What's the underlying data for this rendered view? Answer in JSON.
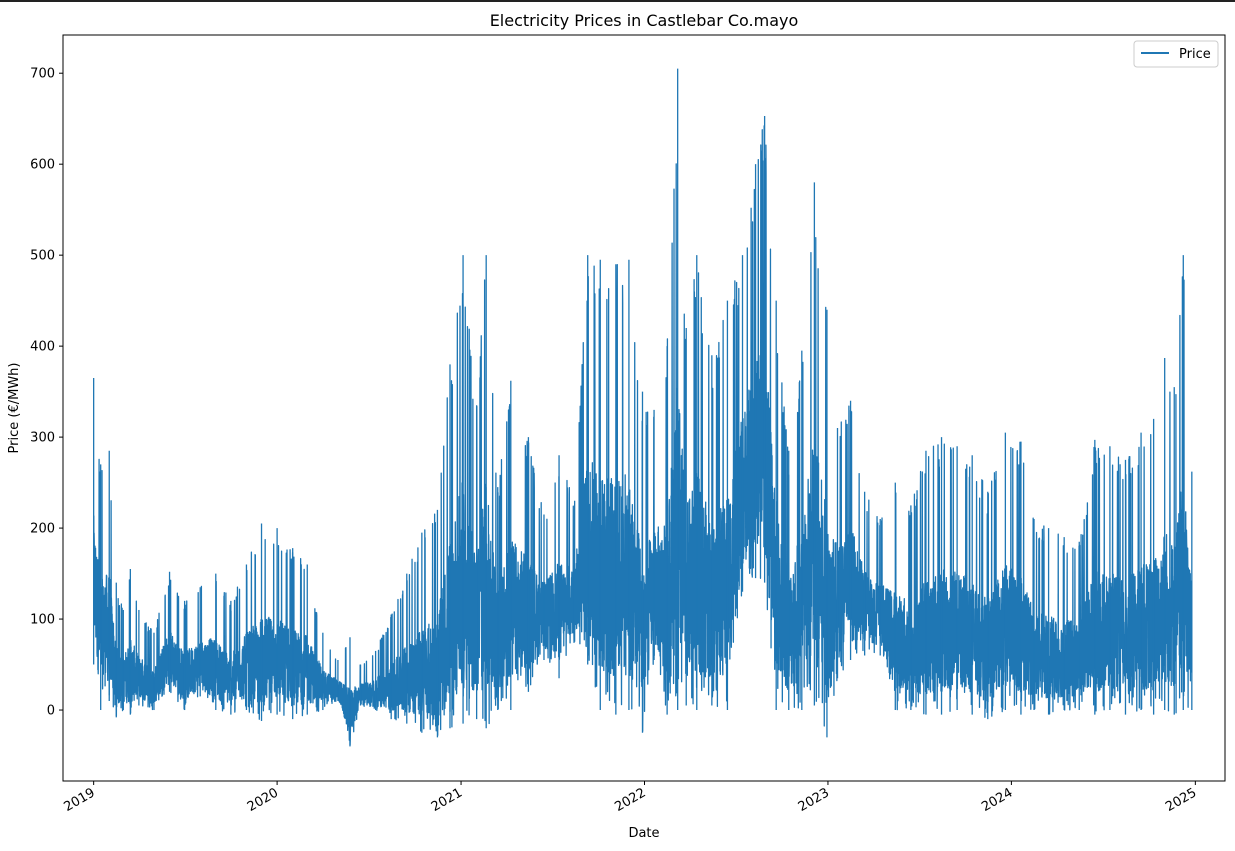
{
  "chart_data": {
    "type": "line",
    "title": "Electricity Prices in Castlebar Co.mayo",
    "xlabel": "Date",
    "ylabel": "Price (€/MWh)",
    "x_ticks": [
      "2019",
      "2020",
      "2021",
      "2022",
      "2023",
      "2024",
      "2025"
    ],
    "y_ticks": [
      0,
      100,
      200,
      300,
      400,
      500,
      600,
      700
    ],
    "xlim": [
      "2018-11-01",
      "2025-03-01"
    ],
    "ylim": [
      -78,
      742
    ],
    "grid": false,
    "legend": "top-right",
    "color": "#1f77b4",
    "series": [
      {
        "name": "Price",
        "resolution": "hourly (rendered as approximate weekly min/max envelope)",
        "envelope": [
          {
            "date": "2019-01-01",
            "min": 50,
            "max": 365
          },
          {
            "date": "2019-01-15",
            "min": 0,
            "max": 270
          },
          {
            "date": "2019-02-01",
            "min": 10,
            "max": 285
          },
          {
            "date": "2019-02-15",
            "min": -8,
            "max": 140
          },
          {
            "date": "2019-03-01",
            "min": 0,
            "max": 110
          },
          {
            "date": "2019-03-15",
            "min": -5,
            "max": 155
          },
          {
            "date": "2019-04-01",
            "min": 5,
            "max": 110
          },
          {
            "date": "2019-05-01",
            "min": 0,
            "max": 85
          },
          {
            "date": "2019-06-01",
            "min": 20,
            "max": 152
          },
          {
            "date": "2019-07-01",
            "min": 0,
            "max": 120
          },
          {
            "date": "2019-08-01",
            "min": 15,
            "max": 135
          },
          {
            "date": "2019-09-01",
            "min": 0,
            "max": 150
          },
          {
            "date": "2019-10-01",
            "min": -5,
            "max": 120
          },
          {
            "date": "2019-11-01",
            "min": 0,
            "max": 160
          },
          {
            "date": "2019-12-01",
            "min": -12,
            "max": 205
          },
          {
            "date": "2020-01-01",
            "min": -5,
            "max": 200
          },
          {
            "date": "2020-02-01",
            "min": -10,
            "max": 178
          },
          {
            "date": "2020-03-01",
            "min": -5,
            "max": 160
          },
          {
            "date": "2020-04-01",
            "min": 0,
            "max": 85
          },
          {
            "date": "2020-05-01",
            "min": 10,
            "max": 55
          },
          {
            "date": "2020-05-25",
            "min": -40,
            "max": 80
          },
          {
            "date": "2020-06-15",
            "min": 5,
            "max": 50
          },
          {
            "date": "2020-07-15",
            "min": 0,
            "max": 65
          },
          {
            "date": "2020-08-15",
            "min": -10,
            "max": 105
          },
          {
            "date": "2020-09-15",
            "min": -15,
            "max": 150
          },
          {
            "date": "2020-10-15",
            "min": -25,
            "max": 195
          },
          {
            "date": "2020-11-15",
            "min": -30,
            "max": 220
          },
          {
            "date": "2020-12-10",
            "min": -20,
            "max": 380
          },
          {
            "date": "2021-01-05",
            "min": -15,
            "max": 500
          },
          {
            "date": "2021-02-01",
            "min": -10,
            "max": 335
          },
          {
            "date": "2021-02-20",
            "min": -20,
            "max": 500
          },
          {
            "date": "2021-03-15",
            "min": 0,
            "max": 245
          },
          {
            "date": "2021-04-10",
            "min": 0,
            "max": 362
          },
          {
            "date": "2021-05-15",
            "min": 20,
            "max": 300
          },
          {
            "date": "2021-06-15",
            "min": 55,
            "max": 215
          },
          {
            "date": "2021-07-15",
            "min": 35,
            "max": 280
          },
          {
            "date": "2021-08-15",
            "min": 75,
            "max": 230
          },
          {
            "date": "2021-09-10",
            "min": 50,
            "max": 500
          },
          {
            "date": "2021-10-05",
            "min": 0,
            "max": 495
          },
          {
            "date": "2021-11-05",
            "min": -5,
            "max": 490
          },
          {
            "date": "2021-12-01",
            "min": 0,
            "max": 495
          },
          {
            "date": "2021-12-28",
            "min": -25,
            "max": 350
          },
          {
            "date": "2022-01-20",
            "min": 55,
            "max": 330
          },
          {
            "date": "2022-02-15",
            "min": -5,
            "max": 400
          },
          {
            "date": "2022-03-08",
            "min": 0,
            "max": 705
          },
          {
            "date": "2022-03-25",
            "min": 5,
            "max": 420
          },
          {
            "date": "2022-04-15",
            "min": 0,
            "max": 500
          },
          {
            "date": "2022-05-15",
            "min": 5,
            "max": 390
          },
          {
            "date": "2022-06-15",
            "min": 0,
            "max": 450
          },
          {
            "date": "2022-07-15",
            "min": 130,
            "max": 500
          },
          {
            "date": "2022-08-10",
            "min": 145,
            "max": 600
          },
          {
            "date": "2022-08-28",
            "min": 140,
            "max": 653
          },
          {
            "date": "2022-09-20",
            "min": 0,
            "max": 450
          },
          {
            "date": "2022-10-15",
            "min": 0,
            "max": 285
          },
          {
            "date": "2022-11-10",
            "min": 0,
            "max": 395
          },
          {
            "date": "2022-12-05",
            "min": 5,
            "max": 580
          },
          {
            "date": "2022-12-30",
            "min": -30,
            "max": 440
          },
          {
            "date": "2023-01-20",
            "min": 35,
            "max": 310
          },
          {
            "date": "2023-02-15",
            "min": 55,
            "max": 340
          },
          {
            "date": "2023-03-15",
            "min": 60,
            "max": 240
          },
          {
            "date": "2023-04-15",
            "min": 60,
            "max": 210
          },
          {
            "date": "2023-05-15",
            "min": 0,
            "max": 250
          },
          {
            "date": "2023-06-15",
            "min": 0,
            "max": 225
          },
          {
            "date": "2023-07-15",
            "min": -5,
            "max": 285
          },
          {
            "date": "2023-08-15",
            "min": -5,
            "max": 300
          },
          {
            "date": "2023-09-15",
            "min": 0,
            "max": 290
          },
          {
            "date": "2023-10-15",
            "min": -5,
            "max": 280
          },
          {
            "date": "2023-11-15",
            "min": -10,
            "max": 240
          },
          {
            "date": "2023-12-20",
            "min": 0,
            "max": 305
          },
          {
            "date": "2024-01-20",
            "min": -5,
            "max": 295
          },
          {
            "date": "2024-02-15",
            "min": 0,
            "max": 210
          },
          {
            "date": "2024-03-15",
            "min": -5,
            "max": 200
          },
          {
            "date": "2024-04-15",
            "min": 0,
            "max": 190
          },
          {
            "date": "2024-05-15",
            "min": 0,
            "max": 185
          },
          {
            "date": "2024-06-15",
            "min": -5,
            "max": 297
          },
          {
            "date": "2024-07-15",
            "min": 0,
            "max": 290
          },
          {
            "date": "2024-08-15",
            "min": -5,
            "max": 275
          },
          {
            "date": "2024-09-15",
            "min": 0,
            "max": 305
          },
          {
            "date": "2024-10-10",
            "min": -5,
            "max": 320
          },
          {
            "date": "2024-11-01",
            "min": 0,
            "max": 387
          },
          {
            "date": "2024-11-20",
            "min": -5,
            "max": 355
          },
          {
            "date": "2024-12-08",
            "min": 0,
            "max": 500
          },
          {
            "date": "2024-12-25",
            "min": 0,
            "max": 262
          }
        ]
      }
    ]
  }
}
